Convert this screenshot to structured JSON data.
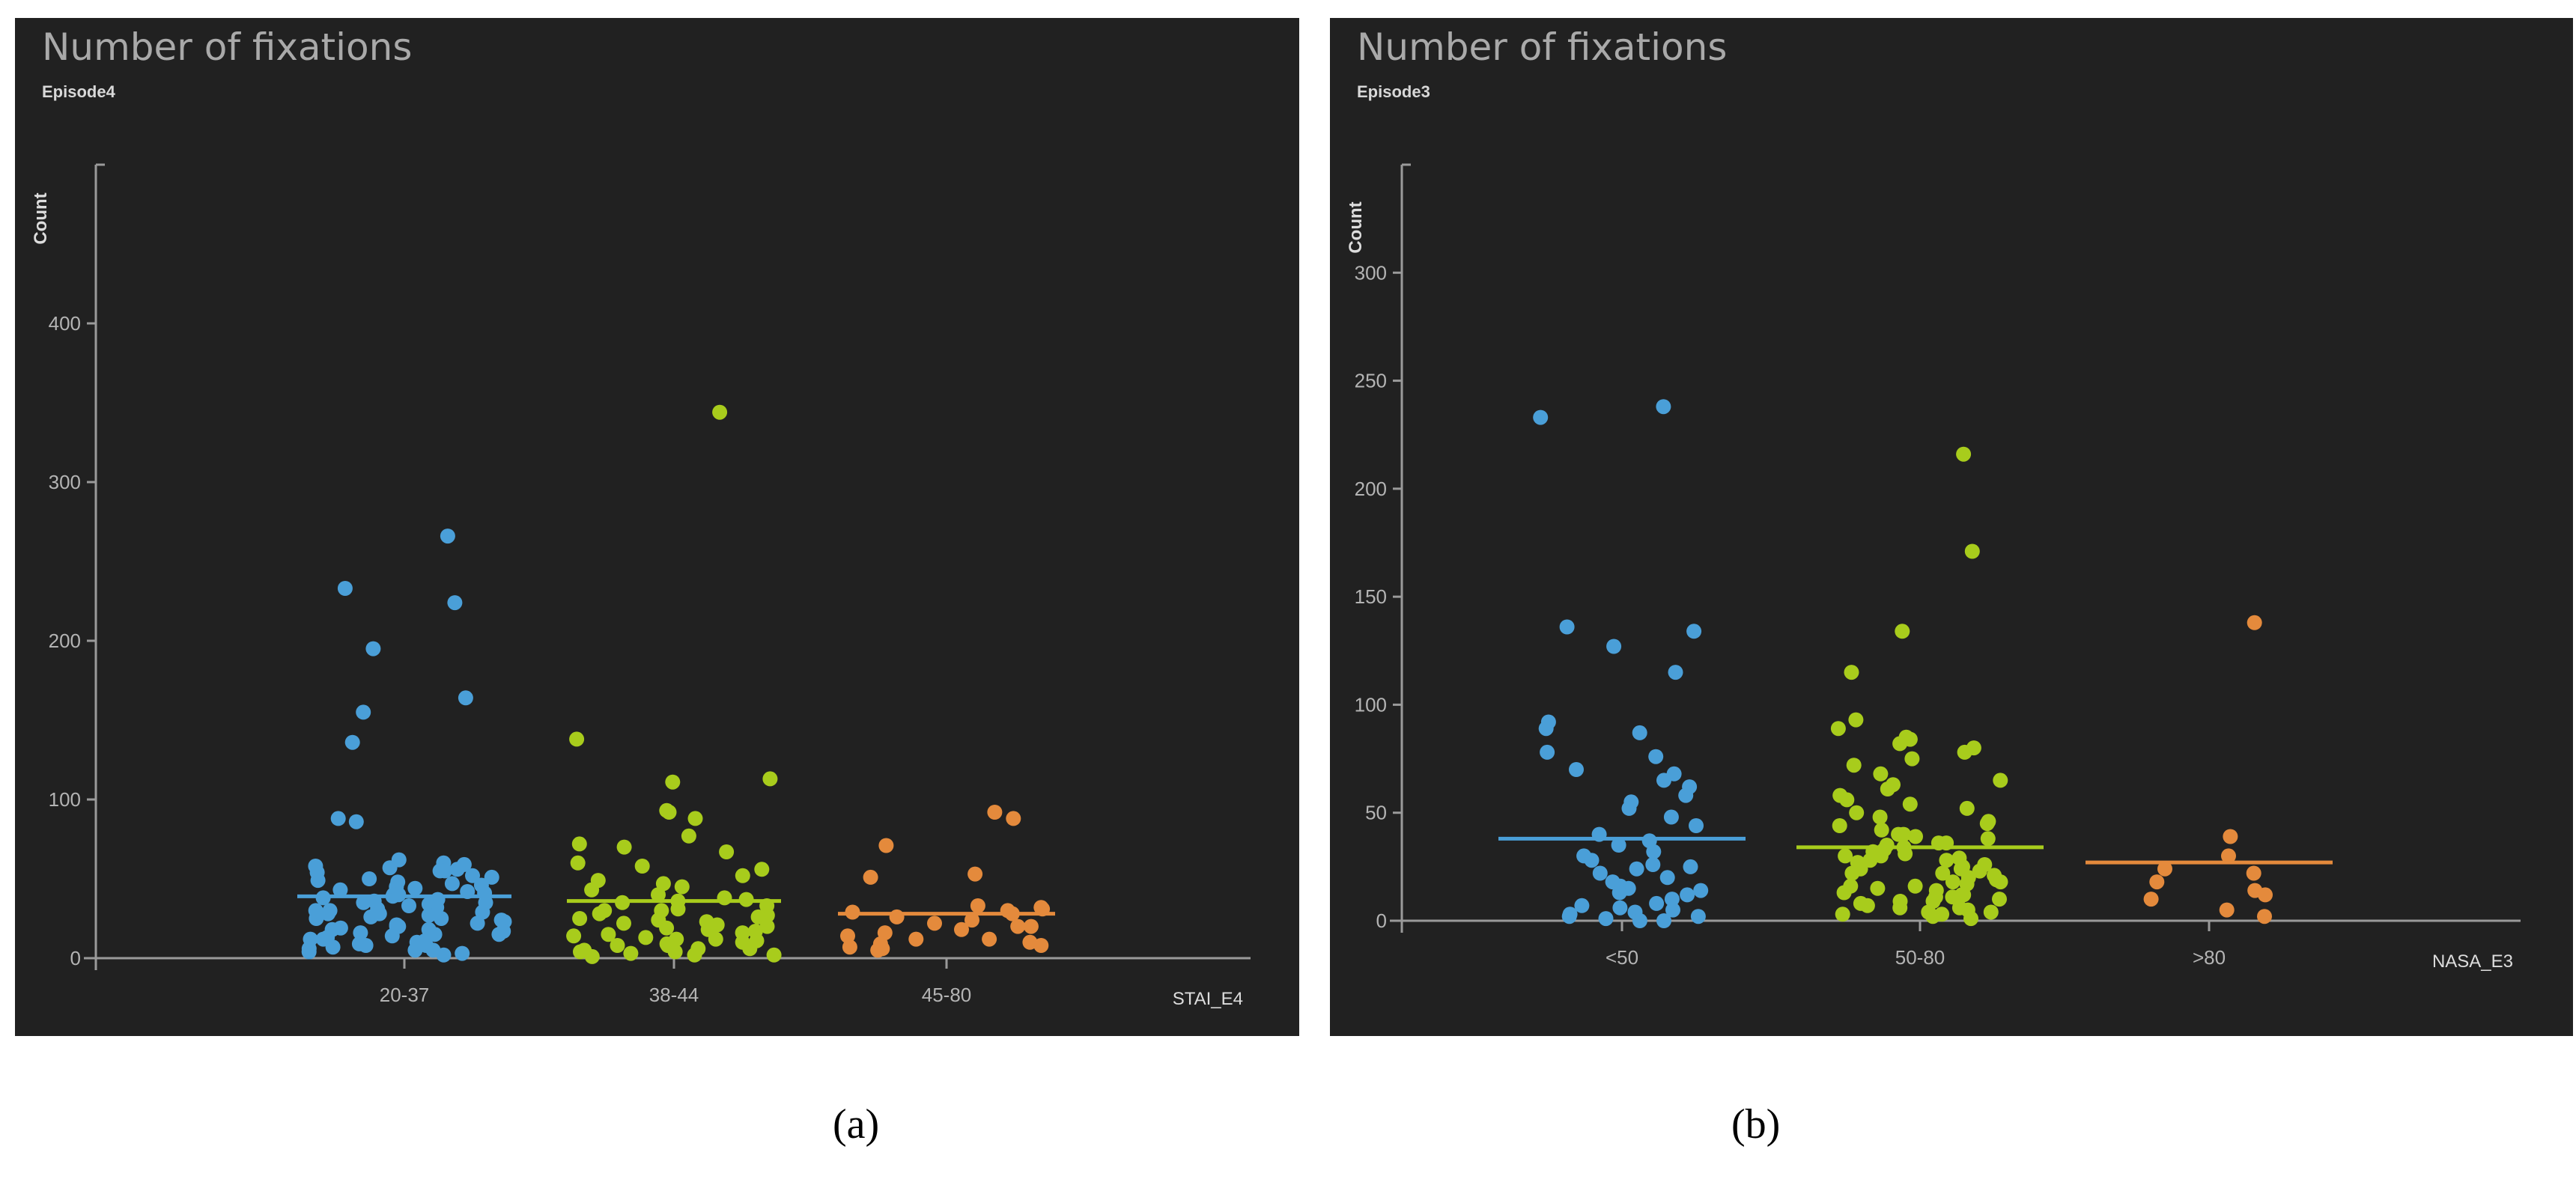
{
  "colors": {
    "background": "#212121",
    "axis": "#9a9a9a",
    "tick_text": "#b4b4b4",
    "blue": "#4a9fd8",
    "green": "#a8cc1c",
    "orange": "#e48a3c"
  },
  "captions": [
    "(a)",
    "(b)"
  ],
  "chart_data": [
    {
      "type": "scatter",
      "title": "Number of fixations",
      "subtitle": "Episode4",
      "ylabel": "Count",
      "xlabel": "STAI_E4",
      "ylim": [
        0,
        500
      ],
      "yticks": [
        0,
        100,
        200,
        300,
        400
      ],
      "categories": [
        "20-37",
        "38-44",
        "45-80"
      ],
      "series": [
        {
          "category": "20-37",
          "color": "#4a9fd8",
          "mean": 39,
          "values": [
            266,
            233,
            224,
            195,
            164,
            155,
            136,
            88,
            86,
            62,
            60,
            59,
            58,
            57,
            56,
            55,
            55,
            54,
            52,
            51,
            50,
            49,
            48,
            47,
            46,
            45,
            44,
            43,
            42,
            41,
            40,
            39,
            38,
            37,
            36,
            35,
            34,
            33,
            32,
            31,
            30,
            29,
            28,
            27,
            26,
            25,
            24,
            23,
            22,
            21,
            20,
            19,
            18,
            17,
            16,
            15,
            14,
            13,
            12,
            11,
            10,
            9,
            8,
            7,
            6,
            5,
            4,
            3,
            2,
            35,
            28,
            20,
            12,
            8,
            5,
            40,
            30,
            18,
            25,
            15
          ]
        },
        {
          "category": "38-44",
          "color": "#a8cc1c",
          "mean": 36,
          "values": [
            344,
            138,
            113,
            111,
            93,
            92,
            88,
            77,
            72,
            70,
            67,
            60,
            58,
            56,
            52,
            49,
            47,
            45,
            43,
            40,
            38,
            36,
            35,
            33,
            31,
            30,
            28,
            27,
            26,
            25,
            23,
            22,
            20,
            19,
            18,
            17,
            15,
            14,
            12,
            11,
            10,
            9,
            8,
            6,
            5,
            4,
            3,
            2,
            1,
            30,
            24,
            16,
            12,
            8,
            37,
            21,
            13,
            6,
            4,
            2
          ]
        },
        {
          "category": "45-80",
          "color": "#e48a3c",
          "mean": 28,
          "values": [
            92,
            88,
            71,
            53,
            51,
            33,
            32,
            31,
            30,
            29,
            28,
            26,
            24,
            22,
            20,
            18,
            16,
            14,
            12,
            10,
            9,
            8,
            7,
            6,
            5,
            20,
            12
          ]
        }
      ]
    },
    {
      "type": "scatter",
      "title": "Number of fixations",
      "subtitle": "Episode3",
      "ylabel": "Count",
      "xlabel": "NASA_E3",
      "ylim": [
        0,
        350
      ],
      "yticks": [
        0,
        50,
        100,
        150,
        200,
        250,
        300
      ],
      "categories": [
        "<50",
        "50-80",
        ">80"
      ],
      "series": [
        {
          "category": "<50",
          "color": "#4a9fd8",
          "mean": 38,
          "values": [
            238,
            233,
            136,
            134,
            127,
            115,
            92,
            89,
            87,
            78,
            76,
            70,
            68,
            65,
            62,
            58,
            55,
            52,
            48,
            44,
            40,
            37,
            35,
            32,
            30,
            28,
            26,
            24,
            22,
            20,
            18,
            16,
            15,
            13,
            12,
            10,
            8,
            7,
            5,
            4,
            3,
            2,
            1,
            0,
            25,
            14,
            6,
            2,
            0
          ]
        },
        {
          "category": "50-80",
          "color": "#a8cc1c",
          "mean": 34,
          "values": [
            216,
            171,
            134,
            115,
            93,
            89,
            85,
            84,
            82,
            80,
            78,
            75,
            72,
            68,
            65,
            63,
            61,
            58,
            56,
            54,
            52,
            50,
            48,
            46,
            45,
            44,
            42,
            40,
            39,
            38,
            36,
            35,
            34,
            33,
            32,
            31,
            30,
            29,
            28,
            27,
            26,
            25,
            24,
            23,
            22,
            21,
            20,
            19,
            18,
            17,
            16,
            15,
            14,
            13,
            12,
            11,
            10,
            9,
            8,
            7,
            6,
            5,
            4,
            3,
            2,
            1,
            30,
            24,
            18,
            12,
            6,
            40,
            28,
            16,
            9,
            4,
            36,
            22,
            11,
            3
          ]
        },
        {
          "category": ">80",
          "color": "#e48a3c",
          "mean": 27,
          "values": [
            138,
            39,
            30,
            24,
            22,
            18,
            14,
            12,
            10,
            5,
            2
          ]
        }
      ]
    }
  ]
}
